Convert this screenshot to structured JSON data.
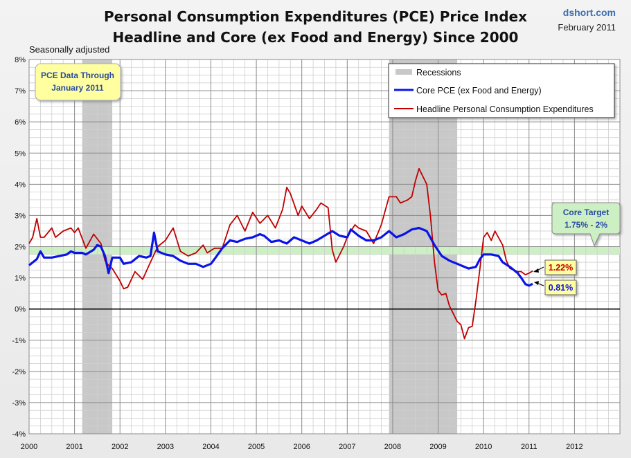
{
  "header": {
    "title_line1": "Personal Consumption Expenditures (PCE) Price Index",
    "title_line2": "Headline and Core (ex Food and Energy) Since 2000",
    "site": "dshort.com",
    "date": "February 2011",
    "subtitle": "Seasonally adjusted"
  },
  "annotations": {
    "data_through_line1": "PCE Data Through",
    "data_through_line2": "January 2011",
    "core_target_line1": "Core Target",
    "core_target_line2": "1.75% - 2%",
    "headline_last": "1.22%",
    "core_last": "0.81%"
  },
  "colors": {
    "core": "#0a14e6",
    "headline": "#c00000",
    "recession": "#c8c8c8",
    "target_band": "#ccefc4",
    "note_fill": "#ffffa0"
  },
  "chart_data": {
    "type": "line",
    "title": "Personal Consumption Expenditures (PCE) Price Index — Headline and Core (ex Food and Energy) Since 2000",
    "xlabel": "",
    "ylabel": "",
    "xlim": [
      2000,
      2013
    ],
    "ylim": [
      -4,
      8
    ],
    "yticks": [
      -4,
      -3,
      -2,
      -1,
      0,
      1,
      2,
      3,
      4,
      5,
      6,
      7,
      8
    ],
    "ytick_labels": [
      "-4%",
      "-3%",
      "-2%",
      "-1%",
      "0%",
      "1%",
      "2%",
      "3%",
      "4%",
      "5%",
      "6%",
      "7%",
      "8%"
    ],
    "xticks": [
      2000,
      2001,
      2002,
      2003,
      2004,
      2005,
      2006,
      2007,
      2008,
      2009,
      2010,
      2011,
      2012
    ],
    "xtick_labels": [
      "2000",
      "2001",
      "2002",
      "2003",
      "2004",
      "2005",
      "2006",
      "2007",
      "2008",
      "2009",
      "2010",
      "2011",
      "2012"
    ],
    "grid": true,
    "legend_position": "top-right",
    "legend": [
      "Recessions",
      "Core PCE (ex Food and Energy)",
      "Headline Personal Consumption Expenditures"
    ],
    "recessions": [
      [
        2001.17,
        2001.83
      ],
      [
        2007.92,
        2009.42
      ]
    ],
    "target_band": [
      1.75,
      2.0
    ],
    "series": [
      {
        "name": "Core PCE (ex Food and Energy)",
        "color": "#0a14e6",
        "points": [
          [
            2000.0,
            1.4
          ],
          [
            2000.17,
            1.6
          ],
          [
            2000.25,
            1.85
          ],
          [
            2000.33,
            1.65
          ],
          [
            2000.5,
            1.65
          ],
          [
            2000.67,
            1.7
          ],
          [
            2000.83,
            1.75
          ],
          [
            2000.92,
            1.85
          ],
          [
            2001.0,
            1.8
          ],
          [
            2001.17,
            1.8
          ],
          [
            2001.25,
            1.75
          ],
          [
            2001.42,
            1.9
          ],
          [
            2001.5,
            2.05
          ],
          [
            2001.58,
            2.0
          ],
          [
            2001.67,
            1.7
          ],
          [
            2001.75,
            1.15
          ],
          [
            2001.83,
            1.65
          ],
          [
            2002.0,
            1.65
          ],
          [
            2002.08,
            1.45
          ],
          [
            2002.25,
            1.5
          ],
          [
            2002.42,
            1.7
          ],
          [
            2002.58,
            1.65
          ],
          [
            2002.67,
            1.7
          ],
          [
            2002.75,
            2.45
          ],
          [
            2002.83,
            1.85
          ],
          [
            2003.0,
            1.75
          ],
          [
            2003.17,
            1.7
          ],
          [
            2003.33,
            1.55
          ],
          [
            2003.5,
            1.45
          ],
          [
            2003.67,
            1.45
          ],
          [
            2003.83,
            1.35
          ],
          [
            2004.0,
            1.45
          ],
          [
            2004.08,
            1.6
          ],
          [
            2004.25,
            1.95
          ],
          [
            2004.42,
            2.2
          ],
          [
            2004.58,
            2.15
          ],
          [
            2004.75,
            2.25
          ],
          [
            2004.92,
            2.3
          ],
          [
            2005.08,
            2.4
          ],
          [
            2005.17,
            2.35
          ],
          [
            2005.33,
            2.15
          ],
          [
            2005.5,
            2.2
          ],
          [
            2005.67,
            2.1
          ],
          [
            2005.83,
            2.3
          ],
          [
            2006.0,
            2.2
          ],
          [
            2006.17,
            2.1
          ],
          [
            2006.33,
            2.2
          ],
          [
            2006.5,
            2.35
          ],
          [
            2006.67,
            2.5
          ],
          [
            2006.83,
            2.35
          ],
          [
            2007.0,
            2.3
          ],
          [
            2007.08,
            2.55
          ],
          [
            2007.25,
            2.35
          ],
          [
            2007.42,
            2.2
          ],
          [
            2007.58,
            2.2
          ],
          [
            2007.75,
            2.3
          ],
          [
            2007.92,
            2.5
          ],
          [
            2008.08,
            2.3
          ],
          [
            2008.25,
            2.4
          ],
          [
            2008.42,
            2.55
          ],
          [
            2008.58,
            2.6
          ],
          [
            2008.75,
            2.5
          ],
          [
            2008.92,
            2.05
          ],
          [
            2009.08,
            1.7
          ],
          [
            2009.25,
            1.55
          ],
          [
            2009.42,
            1.45
          ],
          [
            2009.5,
            1.4
          ],
          [
            2009.67,
            1.3
          ],
          [
            2009.83,
            1.35
          ],
          [
            2009.92,
            1.6
          ],
          [
            2010.0,
            1.75
          ],
          [
            2010.17,
            1.75
          ],
          [
            2010.33,
            1.7
          ],
          [
            2010.42,
            1.5
          ],
          [
            2010.58,
            1.35
          ],
          [
            2010.75,
            1.15
          ],
          [
            2010.83,
            1.0
          ],
          [
            2010.92,
            0.8
          ],
          [
            2011.0,
            0.75
          ],
          [
            2011.08,
            0.81
          ]
        ]
      },
      {
        "name": "Headline Personal Consumption Expenditures",
        "color": "#c00000",
        "points": [
          [
            2000.0,
            2.1
          ],
          [
            2000.08,
            2.3
          ],
          [
            2000.17,
            2.9
          ],
          [
            2000.25,
            2.3
          ],
          [
            2000.33,
            2.3
          ],
          [
            2000.5,
            2.6
          ],
          [
            2000.58,
            2.3
          ],
          [
            2000.75,
            2.5
          ],
          [
            2000.92,
            2.6
          ],
          [
            2001.0,
            2.45
          ],
          [
            2001.08,
            2.6
          ],
          [
            2001.25,
            1.95
          ],
          [
            2001.42,
            2.4
          ],
          [
            2001.58,
            2.1
          ],
          [
            2001.67,
            1.55
          ],
          [
            2001.75,
            1.4
          ],
          [
            2001.83,
            1.3
          ],
          [
            2002.0,
            0.9
          ],
          [
            2002.08,
            0.65
          ],
          [
            2002.17,
            0.7
          ],
          [
            2002.33,
            1.2
          ],
          [
            2002.5,
            0.95
          ],
          [
            2002.67,
            1.5
          ],
          [
            2002.83,
            2.0
          ],
          [
            2003.0,
            2.2
          ],
          [
            2003.17,
            2.6
          ],
          [
            2003.33,
            1.85
          ],
          [
            2003.5,
            1.7
          ],
          [
            2003.67,
            1.8
          ],
          [
            2003.83,
            2.05
          ],
          [
            2003.92,
            1.8
          ],
          [
            2004.08,
            1.95
          ],
          [
            2004.25,
            1.95
          ],
          [
            2004.42,
            2.7
          ],
          [
            2004.58,
            3.0
          ],
          [
            2004.75,
            2.5
          ],
          [
            2004.92,
            3.1
          ],
          [
            2005.08,
            2.75
          ],
          [
            2005.25,
            3.0
          ],
          [
            2005.42,
            2.6
          ],
          [
            2005.58,
            3.2
          ],
          [
            2005.67,
            3.9
          ],
          [
            2005.75,
            3.7
          ],
          [
            2005.92,
            3.0
          ],
          [
            2006.0,
            3.3
          ],
          [
            2006.17,
            2.9
          ],
          [
            2006.33,
            3.2
          ],
          [
            2006.42,
            3.4
          ],
          [
            2006.58,
            3.25
          ],
          [
            2006.67,
            1.9
          ],
          [
            2006.75,
            1.5
          ],
          [
            2006.92,
            2.0
          ],
          [
            2007.0,
            2.3
          ],
          [
            2007.08,
            2.5
          ],
          [
            2007.17,
            2.7
          ],
          [
            2007.25,
            2.6
          ],
          [
            2007.42,
            2.5
          ],
          [
            2007.58,
            2.1
          ],
          [
            2007.75,
            2.7
          ],
          [
            2007.92,
            3.6
          ],
          [
            2008.08,
            3.6
          ],
          [
            2008.17,
            3.4
          ],
          [
            2008.33,
            3.5
          ],
          [
            2008.42,
            3.6
          ],
          [
            2008.5,
            4.1
          ],
          [
            2008.58,
            4.5
          ],
          [
            2008.75,
            4.0
          ],
          [
            2008.83,
            3.0
          ],
          [
            2008.92,
            1.5
          ],
          [
            2009.0,
            0.6
          ],
          [
            2009.08,
            0.45
          ],
          [
            2009.17,
            0.5
          ],
          [
            2009.25,
            0.1
          ],
          [
            2009.42,
            -0.4
          ],
          [
            2009.5,
            -0.5
          ],
          [
            2009.58,
            -0.95
          ],
          [
            2009.67,
            -0.6
          ],
          [
            2009.75,
            -0.55
          ],
          [
            2009.83,
            0.25
          ],
          [
            2009.92,
            1.3
          ],
          [
            2010.0,
            2.3
          ],
          [
            2010.08,
            2.45
          ],
          [
            2010.17,
            2.2
          ],
          [
            2010.25,
            2.5
          ],
          [
            2010.42,
            2.05
          ],
          [
            2010.5,
            1.55
          ],
          [
            2010.58,
            1.3
          ],
          [
            2010.75,
            1.2
          ],
          [
            2010.83,
            1.2
          ],
          [
            2010.92,
            1.1
          ],
          [
            2011.0,
            1.15
          ],
          [
            2011.08,
            1.22
          ]
        ]
      }
    ]
  }
}
